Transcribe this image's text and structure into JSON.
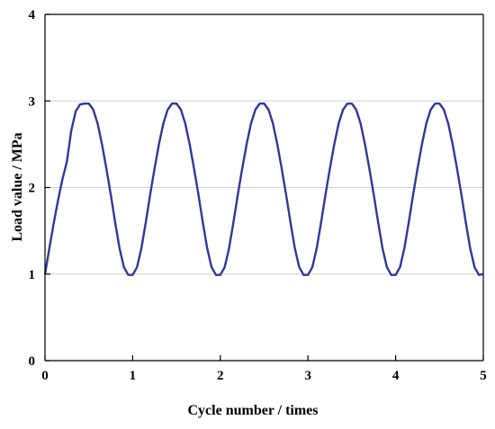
{
  "chart_data": {
    "type": "line",
    "title": "",
    "xlabel": "Cycle number / times",
    "ylabel": "Load value / MPa",
    "xlim": [
      0,
      5
    ],
    "ylim": [
      0,
      4
    ],
    "xticks": [
      "0",
      "1",
      "2",
      "3",
      "4",
      "5"
    ],
    "yticks": [
      "0",
      "1",
      "2",
      "3",
      "4"
    ],
    "grid": "horizontal",
    "legend": "none",
    "colors": {
      "line": "#2E3A96",
      "grid": "#d0d0d0",
      "axis": "#000000"
    },
    "series": [
      {
        "x": [
          0,
          0.05,
          0.1,
          0.15,
          0.2,
          0.25,
          0.3,
          0.35,
          0.4,
          0.45,
          0.5,
          0.55,
          0.6,
          0.65,
          0.7,
          0.75,
          0.8,
          0.85,
          0.9,
          0.95,
          1.0,
          1.05,
          1.1,
          1.15,
          1.2,
          1.25,
          1.3,
          1.35,
          1.4,
          1.45,
          1.5,
          1.55,
          1.6,
          1.65,
          1.7,
          1.75,
          1.8,
          1.85,
          1.9,
          1.95,
          2.0,
          2.05,
          2.1,
          2.15,
          2.2,
          2.25,
          2.3,
          2.35,
          2.4,
          2.45,
          2.5,
          2.55,
          2.6,
          2.65,
          2.7,
          2.75,
          2.8,
          2.85,
          2.9,
          2.95,
          3.0,
          3.05,
          3.1,
          3.15,
          3.2,
          3.25,
          3.3,
          3.35,
          3.4,
          3.45,
          3.5,
          3.55,
          3.6,
          3.65,
          3.7,
          3.75,
          3.8,
          3.85,
          3.9,
          3.95,
          4.0,
          4.05,
          4.1,
          4.15,
          4.2,
          4.25,
          4.3,
          4.35,
          4.4,
          4.45,
          4.5,
          4.55,
          4.6,
          4.65,
          4.7,
          4.75,
          4.8,
          4.85,
          4.9,
          4.95,
          5.0
        ],
        "y": [
          1.0,
          1.3,
          1.59,
          1.86,
          2.1,
          2.3,
          2.66,
          2.88,
          2.96,
          2.97,
          2.97,
          2.9,
          2.74,
          2.5,
          2.22,
          1.92,
          1.6,
          1.3,
          1.08,
          0.99,
          0.99,
          1.08,
          1.3,
          1.6,
          1.92,
          2.22,
          2.5,
          2.74,
          2.9,
          2.97,
          2.97,
          2.9,
          2.74,
          2.5,
          2.22,
          1.92,
          1.6,
          1.3,
          1.08,
          0.99,
          0.99,
          1.08,
          1.3,
          1.6,
          1.92,
          2.22,
          2.5,
          2.74,
          2.9,
          2.97,
          2.97,
          2.9,
          2.74,
          2.5,
          2.22,
          1.92,
          1.6,
          1.3,
          1.08,
          0.99,
          0.99,
          1.08,
          1.3,
          1.6,
          1.92,
          2.22,
          2.5,
          2.74,
          2.9,
          2.97,
          2.97,
          2.9,
          2.74,
          2.5,
          2.22,
          1.92,
          1.6,
          1.3,
          1.08,
          0.99,
          0.99,
          1.08,
          1.3,
          1.6,
          1.92,
          2.22,
          2.5,
          2.74,
          2.9,
          2.97,
          2.97,
          2.9,
          2.74,
          2.5,
          2.22,
          1.92,
          1.6,
          1.3,
          1.08,
          0.99,
          1.0
        ]
      }
    ]
  }
}
